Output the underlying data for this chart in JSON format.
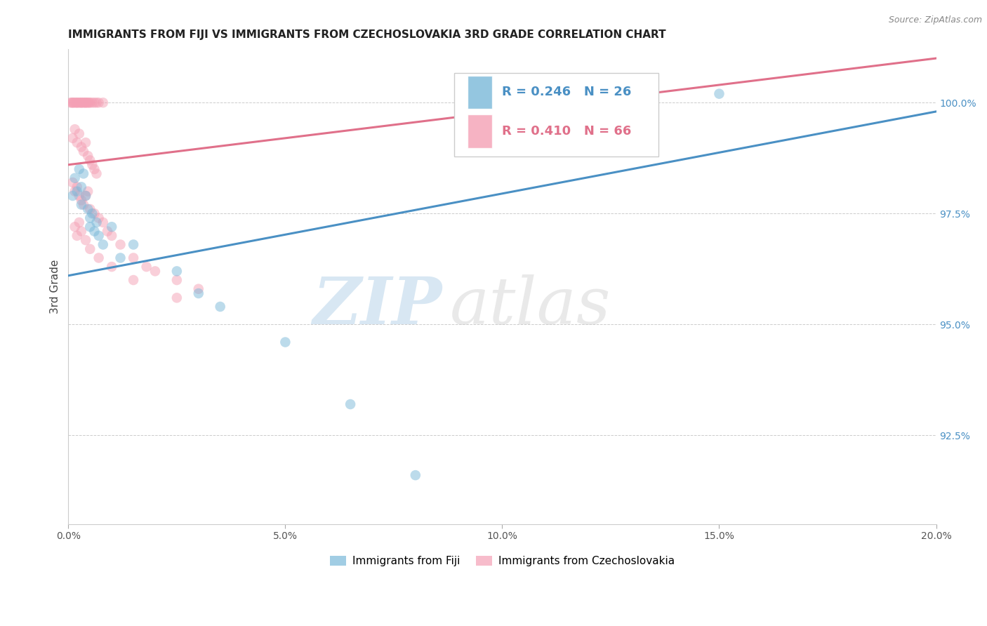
{
  "title": "IMMIGRANTS FROM FIJI VS IMMIGRANTS FROM CZECHOSLOVAKIA 3RD GRADE CORRELATION CHART",
  "source": "Source: ZipAtlas.com",
  "ylabel": "3rd Grade",
  "xlim": [
    0.0,
    20.0
  ],
  "ylim": [
    90.5,
    101.2
  ],
  "yticks": [
    92.5,
    95.0,
    97.5,
    100.0
  ],
  "ytick_labels": [
    "92.5%",
    "95.0%",
    "97.5%",
    "100.0%"
  ],
  "xticks": [
    0.0,
    5.0,
    10.0,
    15.0,
    20.0
  ],
  "xtick_labels": [
    "0.0%",
    "5.0%",
    "10.0%",
    "15.0%",
    "20.0%"
  ],
  "fiji_color": "#7ab8d9",
  "czech_color": "#f4a0b5",
  "fiji_label": "Immigrants from Fiji",
  "czech_label": "Immigrants from Czechoslovakia",
  "fiji_R": 0.246,
  "fiji_N": 26,
  "czech_R": 0.41,
  "czech_N": 66,
  "fiji_line_color": "#4a90c4",
  "czech_line_color": "#e0708a",
  "background_color": "#ffffff",
  "fiji_trend_x": [
    0.0,
    20.0
  ],
  "fiji_trend_y": [
    96.1,
    99.8
  ],
  "czech_trend_x": [
    0.0,
    20.0
  ],
  "czech_trend_y": [
    98.6,
    101.0
  ],
  "fiji_scatter": [
    [
      0.1,
      97.9
    ],
    [
      0.15,
      98.3
    ],
    [
      0.2,
      98.0
    ],
    [
      0.25,
      98.5
    ],
    [
      0.3,
      98.1
    ],
    [
      0.3,
      97.7
    ],
    [
      0.35,
      98.4
    ],
    [
      0.4,
      97.9
    ],
    [
      0.45,
      97.6
    ],
    [
      0.5,
      97.4
    ],
    [
      0.5,
      97.2
    ],
    [
      0.55,
      97.5
    ],
    [
      0.6,
      97.1
    ],
    [
      0.65,
      97.3
    ],
    [
      0.7,
      97.0
    ],
    [
      0.8,
      96.8
    ],
    [
      1.0,
      97.2
    ],
    [
      1.2,
      96.5
    ],
    [
      1.5,
      96.8
    ],
    [
      2.5,
      96.2
    ],
    [
      3.0,
      95.7
    ],
    [
      3.5,
      95.4
    ],
    [
      5.0,
      94.6
    ],
    [
      6.5,
      93.2
    ],
    [
      8.0,
      91.6
    ],
    [
      15.0,
      100.2
    ]
  ],
  "czech_scatter": [
    [
      0.05,
      100.0
    ],
    [
      0.08,
      100.0
    ],
    [
      0.1,
      100.0
    ],
    [
      0.12,
      100.0
    ],
    [
      0.15,
      100.0
    ],
    [
      0.18,
      100.0
    ],
    [
      0.2,
      100.0
    ],
    [
      0.22,
      100.0
    ],
    [
      0.25,
      100.0
    ],
    [
      0.28,
      100.0
    ],
    [
      0.3,
      100.0
    ],
    [
      0.32,
      100.0
    ],
    [
      0.35,
      100.0
    ],
    [
      0.38,
      100.0
    ],
    [
      0.4,
      100.0
    ],
    [
      0.42,
      100.0
    ],
    [
      0.45,
      100.0
    ],
    [
      0.48,
      100.0
    ],
    [
      0.5,
      100.0
    ],
    [
      0.55,
      100.0
    ],
    [
      0.6,
      100.0
    ],
    [
      0.65,
      100.0
    ],
    [
      0.7,
      100.0
    ],
    [
      0.8,
      100.0
    ],
    [
      0.1,
      99.2
    ],
    [
      0.15,
      99.4
    ],
    [
      0.2,
      99.1
    ],
    [
      0.25,
      99.3
    ],
    [
      0.3,
      99.0
    ],
    [
      0.35,
      98.9
    ],
    [
      0.4,
      99.1
    ],
    [
      0.45,
      98.8
    ],
    [
      0.5,
      98.7
    ],
    [
      0.55,
      98.6
    ],
    [
      0.6,
      98.5
    ],
    [
      0.65,
      98.4
    ],
    [
      0.1,
      98.2
    ],
    [
      0.15,
      98.0
    ],
    [
      0.2,
      98.1
    ],
    [
      0.25,
      97.9
    ],
    [
      0.3,
      97.8
    ],
    [
      0.35,
      97.7
    ],
    [
      0.4,
      97.9
    ],
    [
      0.45,
      98.0
    ],
    [
      0.5,
      97.6
    ],
    [
      0.6,
      97.5
    ],
    [
      0.7,
      97.4
    ],
    [
      0.8,
      97.3
    ],
    [
      0.9,
      97.1
    ],
    [
      1.0,
      97.0
    ],
    [
      1.2,
      96.8
    ],
    [
      1.5,
      96.5
    ],
    [
      1.8,
      96.3
    ],
    [
      2.0,
      96.2
    ],
    [
      2.5,
      96.0
    ],
    [
      3.0,
      95.8
    ],
    [
      0.15,
      97.2
    ],
    [
      0.2,
      97.0
    ],
    [
      0.25,
      97.3
    ],
    [
      0.3,
      97.1
    ],
    [
      0.4,
      96.9
    ],
    [
      0.5,
      96.7
    ],
    [
      0.7,
      96.5
    ],
    [
      1.0,
      96.3
    ],
    [
      1.5,
      96.0
    ],
    [
      2.5,
      95.6
    ]
  ],
  "watermark_zip": "ZIP",
  "watermark_atlas": "atlas",
  "title_fontsize": 11,
  "axis_label_fontsize": 11,
  "tick_fontsize": 10,
  "legend_fontsize": 13
}
